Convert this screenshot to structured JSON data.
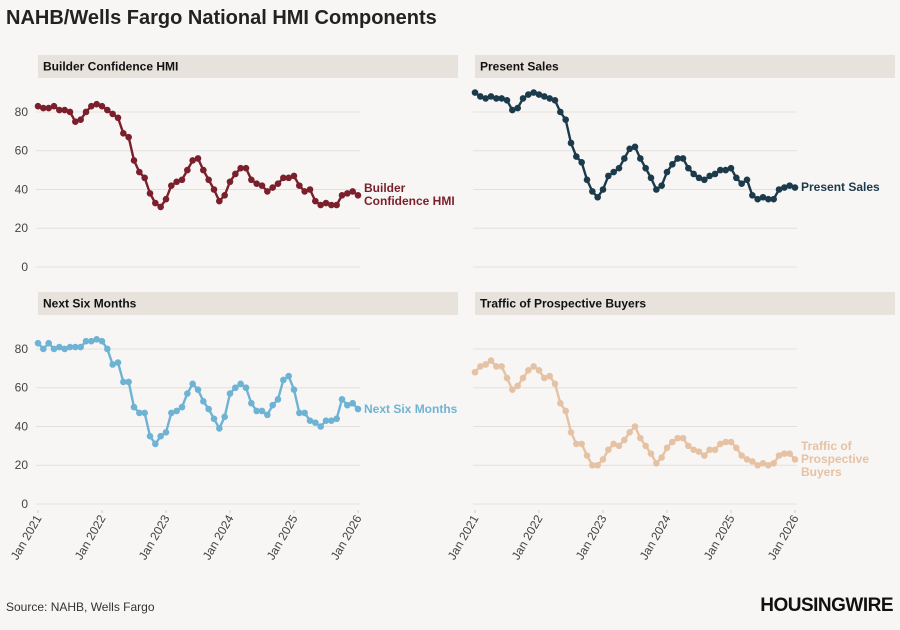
{
  "title": "NAHB/Wells Fargo National HMI Components",
  "source": "Source: NAHB, Wells Fargo",
  "brand": "HOUSINGWIRE",
  "chart_data": [
    {
      "type": "line",
      "title": "Builder Confidence HMI",
      "x": [
        "2021-01",
        "2021-02",
        "2021-03",
        "2021-04",
        "2021-05",
        "2021-06",
        "2021-07",
        "2021-08",
        "2021-09",
        "2021-10",
        "2021-11",
        "2021-12",
        "2022-01",
        "2022-02",
        "2022-03",
        "2022-04",
        "2022-05",
        "2022-06",
        "2022-07",
        "2022-08",
        "2022-09",
        "2022-10",
        "2022-11",
        "2022-12",
        "2023-01",
        "2023-02",
        "2023-03",
        "2023-04",
        "2023-05",
        "2023-06",
        "2023-07",
        "2023-08",
        "2023-09",
        "2023-10",
        "2023-11",
        "2023-12",
        "2024-01",
        "2024-02",
        "2024-03",
        "2024-04",
        "2024-05",
        "2024-06",
        "2024-07",
        "2024-08",
        "2024-09",
        "2024-10",
        "2024-11",
        "2024-12",
        "2025-01",
        "2025-02",
        "2025-03",
        "2025-04",
        "2025-05",
        "2025-06",
        "2025-07",
        "2025-08",
        "2025-09",
        "2025-10",
        "2025-11",
        "2025-12",
        "2026-01"
      ],
      "xlim": [
        "2021-01",
        "2026-01"
      ],
      "ylim": [
        0,
        90
      ],
      "yticks": [
        0,
        20,
        40,
        60,
        80
      ],
      "grid": true,
      "series": [
        {
          "name": "Builder Confidence HMI",
          "color": "#7a1f2b",
          "values": [
            83,
            82,
            82,
            83,
            81,
            81,
            80,
            75,
            76,
            80,
            83,
            84,
            83,
            81,
            79,
            77,
            69,
            67,
            55,
            49,
            46,
            38,
            33,
            31,
            35,
            42,
            44,
            45,
            50,
            55,
            56,
            50,
            45,
            40,
            34,
            37,
            44,
            48,
            51,
            51,
            45,
            43,
            42,
            39,
            41,
            43,
            46,
            46,
            47,
            42,
            39,
            40,
            34,
            32,
            33,
            32,
            32,
            37,
            38,
            39,
            37
          ]
        }
      ]
    },
    {
      "type": "line",
      "title": "Present Sales",
      "x": [
        "2021-01",
        "2021-02",
        "2021-03",
        "2021-04",
        "2021-05",
        "2021-06",
        "2021-07",
        "2021-08",
        "2021-09",
        "2021-10",
        "2021-11",
        "2021-12",
        "2022-01",
        "2022-02",
        "2022-03",
        "2022-04",
        "2022-05",
        "2022-06",
        "2022-07",
        "2022-08",
        "2022-09",
        "2022-10",
        "2022-11",
        "2022-12",
        "2023-01",
        "2023-02",
        "2023-03",
        "2023-04",
        "2023-05",
        "2023-06",
        "2023-07",
        "2023-08",
        "2023-09",
        "2023-10",
        "2023-11",
        "2023-12",
        "2024-01",
        "2024-02",
        "2024-03",
        "2024-04",
        "2024-05",
        "2024-06",
        "2024-07",
        "2024-08",
        "2024-09",
        "2024-10",
        "2024-11",
        "2024-12",
        "2025-01",
        "2025-02",
        "2025-03",
        "2025-04",
        "2025-05",
        "2025-06",
        "2025-07",
        "2025-08",
        "2025-09",
        "2025-10",
        "2025-11",
        "2025-12",
        "2026-01"
      ],
      "xlim": [
        "2021-01",
        "2026-01"
      ],
      "ylim": [
        0,
        90
      ],
      "yticks": [
        0,
        20,
        40,
        60,
        80
      ],
      "grid": true,
      "series": [
        {
          "name": "Present Sales",
          "color": "#1b3a4b",
          "values": [
            90,
            88,
            87,
            88,
            87,
            87,
            86,
            81,
            82,
            87,
            89,
            90,
            89,
            88,
            87,
            86,
            80,
            76,
            64,
            57,
            54,
            45,
            39,
            36,
            40,
            47,
            49,
            51,
            56,
            61,
            62,
            56,
            51,
            46,
            40,
            42,
            49,
            53,
            56,
            56,
            51,
            48,
            46,
            45,
            47,
            48,
            50,
            50,
            51,
            46,
            43,
            45,
            37,
            35,
            36,
            35,
            35,
            40,
            41,
            42,
            41
          ]
        }
      ]
    },
    {
      "type": "line",
      "title": "Next Six Months",
      "x": [
        "2021-01",
        "2021-02",
        "2021-03",
        "2021-04",
        "2021-05",
        "2021-06",
        "2021-07",
        "2021-08",
        "2021-09",
        "2021-10",
        "2021-11",
        "2021-12",
        "2022-01",
        "2022-02",
        "2022-03",
        "2022-04",
        "2022-05",
        "2022-06",
        "2022-07",
        "2022-08",
        "2022-09",
        "2022-10",
        "2022-11",
        "2022-12",
        "2023-01",
        "2023-02",
        "2023-03",
        "2023-04",
        "2023-05",
        "2023-06",
        "2023-07",
        "2023-08",
        "2023-09",
        "2023-10",
        "2023-11",
        "2023-12",
        "2024-01",
        "2024-02",
        "2024-03",
        "2024-04",
        "2024-05",
        "2024-06",
        "2024-07",
        "2024-08",
        "2024-09",
        "2024-10",
        "2024-11",
        "2024-12",
        "2025-01",
        "2025-02",
        "2025-03",
        "2025-04",
        "2025-05",
        "2025-06",
        "2025-07",
        "2025-08",
        "2025-09",
        "2025-10",
        "2025-11",
        "2025-12",
        "2026-01"
      ],
      "xlim": [
        "2021-01",
        "2026-01"
      ],
      "xticks": [
        {
          "value": "2021-01",
          "label": "Jan 2021"
        },
        {
          "value": "2022-01",
          "label": "Jan 2022"
        },
        {
          "value": "2023-01",
          "label": "Jan 2023"
        },
        {
          "value": "2024-01",
          "label": "Jan 2024"
        },
        {
          "value": "2025-01",
          "label": "Jan 2025"
        },
        {
          "value": "2026-01",
          "label": "Jan 2026"
        }
      ],
      "ylim": [
        0,
        90
      ],
      "yticks": [
        0,
        20,
        40,
        60,
        80
      ],
      "grid": true,
      "series": [
        {
          "name": "Next Six Months",
          "color": "#6fb3d4",
          "values": [
            83,
            80,
            83,
            80,
            81,
            80,
            81,
            81,
            81,
            84,
            84,
            85,
            84,
            80,
            72,
            73,
            63,
            63,
            50,
            47,
            47,
            35,
            31,
            35,
            37,
            47,
            48,
            50,
            57,
            62,
            59,
            53,
            49,
            44,
            39,
            45,
            57,
            60,
            62,
            60,
            52,
            48,
            48,
            46,
            51,
            54,
            64,
            66,
            59,
            47,
            47,
            43,
            42,
            40,
            43,
            43,
            44,
            54,
            51,
            52,
            49
          ]
        }
      ]
    },
    {
      "type": "line",
      "title": "Traffic of Prospective Buyers",
      "x": [
        "2021-01",
        "2021-02",
        "2021-03",
        "2021-04",
        "2021-05",
        "2021-06",
        "2021-07",
        "2021-08",
        "2021-09",
        "2021-10",
        "2021-11",
        "2021-12",
        "2022-01",
        "2022-02",
        "2022-03",
        "2022-04",
        "2022-05",
        "2022-06",
        "2022-07",
        "2022-08",
        "2022-09",
        "2022-10",
        "2022-11",
        "2022-12",
        "2023-01",
        "2023-02",
        "2023-03",
        "2023-04",
        "2023-05",
        "2023-06",
        "2023-07",
        "2023-08",
        "2023-09",
        "2023-10",
        "2023-11",
        "2023-12",
        "2024-01",
        "2024-02",
        "2024-03",
        "2024-04",
        "2024-05",
        "2024-06",
        "2024-07",
        "2024-08",
        "2024-09",
        "2024-10",
        "2024-11",
        "2024-12",
        "2025-01",
        "2025-02",
        "2025-03",
        "2025-04",
        "2025-05",
        "2025-06",
        "2025-07",
        "2025-08",
        "2025-09",
        "2025-10",
        "2025-11",
        "2025-12",
        "2026-01"
      ],
      "xlim": [
        "2021-01",
        "2026-01"
      ],
      "xticks": [
        {
          "value": "2021-01",
          "label": "Jan 2021"
        },
        {
          "value": "2022-01",
          "label": "Jan 2022"
        },
        {
          "value": "2023-01",
          "label": "Jan 2023"
        },
        {
          "value": "2024-01",
          "label": "Jan 2024"
        },
        {
          "value": "2025-01",
          "label": "Jan 2025"
        },
        {
          "value": "2026-01",
          "label": "Jan 2026"
        }
      ],
      "ylim": [
        0,
        90
      ],
      "yticks": [
        0,
        20,
        40,
        60,
        80
      ],
      "grid": true,
      "series": [
        {
          "name": "Traffic of Prospective Buyers",
          "color": "#e5c2a3",
          "values": [
            68,
            71,
            72,
            74,
            71,
            71,
            65,
            59,
            61,
            65,
            69,
            71,
            69,
            65,
            66,
            62,
            52,
            48,
            37,
            31,
            31,
            25,
            20,
            20,
            23,
            28,
            31,
            30,
            33,
            37,
            40,
            34,
            30,
            26,
            21,
            24,
            29,
            32,
            34,
            34,
            30,
            28,
            27,
            25,
            28,
            28,
            31,
            32,
            32,
            29,
            25,
            23,
            22,
            20,
            21,
            20,
            21,
            25,
            26,
            26,
            23
          ]
        }
      ]
    }
  ]
}
